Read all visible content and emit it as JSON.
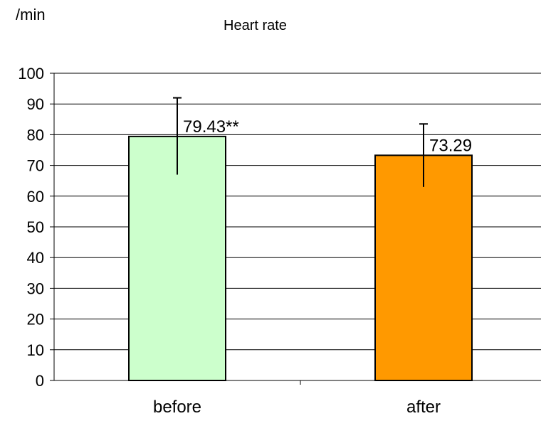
{
  "chart_data": {
    "type": "bar",
    "title": "Heart rate",
    "ylabel": "/min",
    "xlabel": "",
    "ylim": [
      0,
      100
    ],
    "yticks": [
      0,
      10,
      20,
      30,
      40,
      50,
      60,
      70,
      80,
      90,
      100
    ],
    "grid": true,
    "legend": "none",
    "categories": [
      "before",
      "after"
    ],
    "values": [
      79.43,
      73.29
    ],
    "error_low": [
      67,
      63
    ],
    "error_high": [
      92,
      83.5
    ],
    "data_labels": [
      "79.43**",
      "73.29"
    ],
    "bar_colors": [
      "#ccffcc",
      "#ff9900"
    ]
  }
}
